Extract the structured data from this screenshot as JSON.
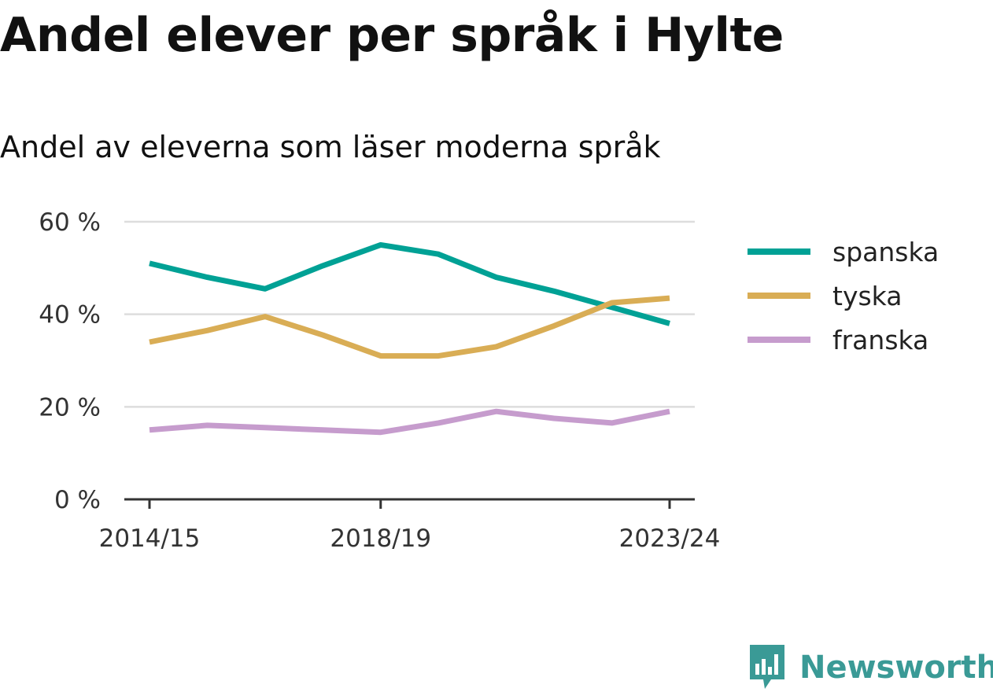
{
  "title": "Andel elever per språk i Hylte",
  "subtitle": "Andel av eleverna som läser moderna språk",
  "brand": {
    "name": "Newsworthy",
    "color": "#3a9a96",
    "icon": "bar-chart-speech-bubble-icon"
  },
  "colors": {
    "grid": "#dddddd",
    "axis": "#333333"
  },
  "chart_data": {
    "type": "line",
    "x": [
      "2014/15",
      "2015/16",
      "2016/17",
      "2017/18",
      "2018/19",
      "2019/20",
      "2020/21",
      "2021/22",
      "2022/23",
      "2023/24"
    ],
    "x_tick_labels": [
      "2014/15",
      "2018/19",
      "2023/24"
    ],
    "y_ticks": [
      "0 %",
      "20 %",
      "40 %",
      "60 %"
    ],
    "ylim": [
      0,
      60
    ],
    "grid": true,
    "legend_position": "right",
    "series": [
      {
        "name": "spanska",
        "color": "#00a195",
        "values": [
          51,
          48,
          45.5,
          50.5,
          55,
          53,
          48,
          45,
          41.5,
          38
        ]
      },
      {
        "name": "tyska",
        "color": "#d9ad55",
        "values": [
          34,
          36.5,
          39.5,
          35.5,
          31,
          31,
          33,
          37.5,
          42.5,
          43.5
        ]
      },
      {
        "name": "franska",
        "color": "#c69ccd",
        "values": [
          15,
          16,
          15.5,
          15,
          14.5,
          16.5,
          19,
          17.5,
          16.5,
          19
        ]
      }
    ]
  }
}
